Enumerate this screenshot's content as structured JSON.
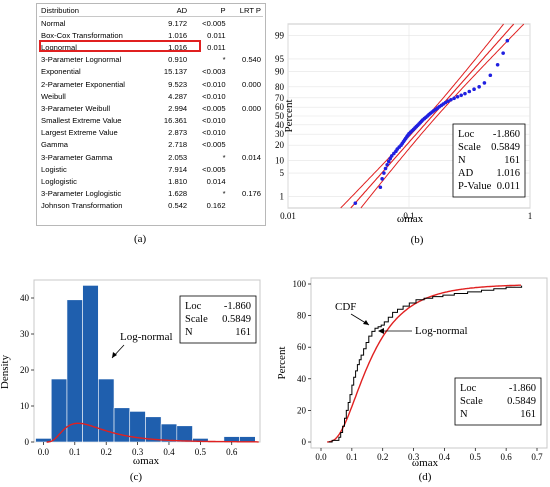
{
  "captions": {
    "a": "(a)",
    "b": "(b)",
    "c": "(c)",
    "d": "(d)"
  },
  "table": {
    "headers": [
      "Distribution",
      "AD",
      "P",
      "LRT P"
    ],
    "rows": [
      [
        "Normal",
        "9.172",
        "<0.005",
        ""
      ],
      [
        "Box-Cox Transformation",
        "1.016",
        "0.011",
        ""
      ],
      [
        "Lognormal",
        "1.016",
        "0.011",
        ""
      ],
      [
        "3-Parameter Lognormal",
        "0.910",
        "*",
        "0.540"
      ],
      [
        "Exponential",
        "15.137",
        "<0.003",
        ""
      ],
      [
        "2-Parameter Exponential",
        "9.523",
        "<0.010",
        "0.000"
      ],
      [
        "Weibull",
        "4.287",
        "<0.010",
        ""
      ],
      [
        "3-Parameter Weibull",
        "2.994",
        "<0.005",
        "0.000"
      ],
      [
        "Smallest Extreme Value",
        "16.361",
        "<0.010",
        ""
      ],
      [
        "Largest Extreme Value",
        "2.873",
        "<0.010",
        ""
      ],
      [
        "Gamma",
        "2.718",
        "<0.005",
        ""
      ],
      [
        "3-Parameter Gamma",
        "2.053",
        "*",
        "0.014"
      ],
      [
        "Logistic",
        "7.914",
        "<0.005",
        ""
      ],
      [
        "Loglogistic",
        "1.810",
        "0.014",
        ""
      ],
      [
        "3-Parameter Loglogistic",
        "1.628",
        "*",
        "0.176"
      ],
      [
        "Johnson Transformation",
        "0.542",
        "0.162",
        ""
      ]
    ],
    "highlight_row": 2,
    "highlight_color": "#e02020"
  },
  "colors": {
    "fit_line": "#e02020",
    "points": "#2020e0",
    "bars": "#1f5fae",
    "step": "#000000"
  },
  "chart_data": [
    {
      "type": "scatter",
      "panel": "b",
      "title": "",
      "ylabel": "Percent",
      "xlabel": "ωmax",
      "x_scale": "log",
      "y_scale": "lognormal-probability",
      "xlim": [
        0.01,
        1
      ],
      "x_ticks": [
        "0.01",
        "0.1",
        "1"
      ],
      "y_ticks": [
        "1",
        "5",
        "10",
        "20",
        "30",
        "40",
        "50",
        "60",
        "70",
        "80",
        "90",
        "95",
        "99"
      ],
      "legend": [
        {
          "label": "Loc",
          "value": "-1.860"
        },
        {
          "label": "Scale",
          "value": "0.5849"
        },
        {
          "label": "N",
          "value": "161"
        },
        {
          "label": "AD",
          "value": "1.016"
        },
        {
          "label": "P-Value",
          "value": "0.011"
        }
      ],
      "loc": -1.86,
      "scale": 0.5849,
      "points_x": [
        0.036,
        0.058,
        0.06,
        0.062,
        0.064,
        0.066,
        0.068,
        0.07,
        0.072,
        0.075,
        0.078,
        0.08,
        0.083,
        0.086,
        0.088,
        0.09,
        0.092,
        0.094,
        0.096,
        0.098,
        0.1,
        0.103,
        0.106,
        0.109,
        0.112,
        0.115,
        0.118,
        0.121,
        0.124,
        0.127,
        0.13,
        0.134,
        0.138,
        0.142,
        0.146,
        0.15,
        0.155,
        0.16,
        0.166,
        0.172,
        0.178,
        0.185,
        0.192,
        0.2,
        0.21,
        0.222,
        0.236,
        0.252,
        0.27,
        0.29,
        0.315,
        0.345,
        0.38,
        0.42,
        0.47,
        0.54,
        0.6,
        0.65
      ],
      "points_p": [
        0.6,
        2.0,
        3.5,
        5.0,
        6.5,
        8.0,
        9.5,
        11.0,
        12.5,
        14.0,
        15.5,
        17.0,
        18.5,
        20.0,
        21.5,
        23.0,
        24.5,
        26.0,
        27.5,
        29.0,
        30.5,
        32.0,
        33.5,
        35.0,
        36.5,
        38.0,
        39.5,
        41.0,
        42.5,
        44.0,
        45.5,
        47.0,
        48.5,
        50.0,
        51.5,
        53.0,
        54.5,
        56.0,
        57.5,
        59.0,
        60.5,
        62.0,
        63.5,
        65.0,
        66.5,
        68.0,
        69.5,
        71.0,
        72.5,
        74.0,
        76.0,
        78.0,
        80.0,
        83.0,
        88.0,
        93.0,
        96.5,
        98.5
      ]
    },
    {
      "type": "bar",
      "panel": "c",
      "title": "",
      "ylabel": "Density",
      "xlabel": "ωmax",
      "xlim": [
        -0.03,
        0.69
      ],
      "ylim": [
        0,
        45
      ],
      "x_ticks": [
        0.0,
        0.1,
        0.2,
        0.3,
        0.4,
        0.5,
        0.6
      ],
      "y_ticks": [
        0,
        10,
        20,
        30,
        40
      ],
      "bin_width": 0.05,
      "bin_edges": [
        -0.025,
        0.025,
        0.075,
        0.125,
        0.175,
        0.225,
        0.275,
        0.325,
        0.375,
        0.425,
        0.475,
        0.525,
        0.575,
        0.625,
        0.675
      ],
      "values": [
        1,
        17.5,
        39.5,
        43.5,
        17.5,
        9.5,
        8.5,
        7,
        5,
        4.5,
        1,
        0,
        1.5,
        1.5
      ],
      "annotation": "Log-normal",
      "legend": [
        {
          "label": "Loc",
          "value": "-1.860"
        },
        {
          "label": "Scale",
          "value": "0.5849"
        },
        {
          "label": "N",
          "value": "161"
        }
      ],
      "loc": -1.86,
      "scale": 0.5849
    },
    {
      "type": "line",
      "panel": "d",
      "title": "",
      "ylabel": "Percent",
      "xlabel": "ωmax",
      "xlim": [
        0,
        0.7
      ],
      "ylim": [
        0,
        100
      ],
      "x_ticks": [
        0.0,
        0.1,
        0.2,
        0.3,
        0.4,
        0.5,
        0.6,
        0.7
      ],
      "y_ticks": [
        0,
        20,
        40,
        60,
        80,
        100
      ],
      "annotations": [
        "CDF",
        "Log-normal"
      ],
      "legend": [
        {
          "label": "Loc",
          "value": "-1.860"
        },
        {
          "label": "Scale",
          "value": "0.5849"
        },
        {
          "label": "N",
          "value": "161"
        }
      ],
      "loc": -1.86,
      "scale": 0.5849,
      "ecdf_x": [
        0.036,
        0.058,
        0.064,
        0.07,
        0.076,
        0.082,
        0.088,
        0.094,
        0.1,
        0.106,
        0.112,
        0.118,
        0.124,
        0.13,
        0.138,
        0.146,
        0.155,
        0.165,
        0.175,
        0.185,
        0.195,
        0.205,
        0.218,
        0.232,
        0.248,
        0.266,
        0.286,
        0.308,
        0.334,
        0.362,
        0.395,
        0.432,
        0.475,
        0.52,
        0.56,
        0.6,
        0.65
      ],
      "ecdf_p": [
        1,
        3,
        6,
        10,
        15,
        20,
        25,
        30,
        36,
        41,
        45,
        49,
        52,
        55,
        59,
        63,
        67,
        70,
        72,
        73,
        74,
        76,
        79,
        82,
        84,
        86,
        88,
        90,
        91,
        92,
        93,
        94,
        95,
        96,
        97,
        98,
        99
      ]
    }
  ]
}
